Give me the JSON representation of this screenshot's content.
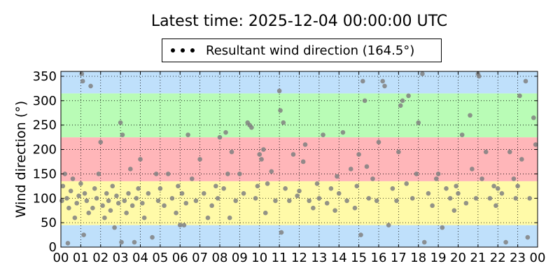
{
  "title": "Latest time: 2025-12-04 00:00:00 UTC",
  "legend": {
    "label": "Resultant wind direction (164.5°)"
  },
  "chart_data": {
    "type": "scatter",
    "title": "Latest time: 2025-12-04 00:00:00 UTC",
    "xlabel": "",
    "ylabel": "Wind direction (°)",
    "xlim": [
      0,
      24
    ],
    "ylim": [
      0,
      360
    ],
    "x_tick_labels": [
      "00",
      "01",
      "02",
      "03",
      "04",
      "05",
      "06",
      "07",
      "08",
      "09",
      "10",
      "11",
      "12",
      "13",
      "14",
      "15",
      "16",
      "17",
      "18",
      "19",
      "20",
      "21",
      "22",
      "23",
      "00"
    ],
    "y_ticks": [
      0,
      50,
      100,
      150,
      200,
      250,
      300,
      350
    ],
    "grid": true,
    "legend_position": "top-center",
    "point_color": "#808080",
    "bands": [
      {
        "from": 0,
        "to": 45,
        "color": "#bfe0fb"
      },
      {
        "from": 45,
        "to": 135,
        "color": "#fffaa8"
      },
      {
        "from": 135,
        "to": 225,
        "color": "#ffb6b9"
      },
      {
        "from": 225,
        "to": 315,
        "color": "#b9fcb6"
      },
      {
        "from": 315,
        "to": 360,
        "color": "#bfe0fb"
      }
    ],
    "series": [
      {
        "name": "Resultant wind direction (164.5°)",
        "points": [
          [
            0.05,
            95
          ],
          [
            0.1,
            125
          ],
          [
            0.2,
            150
          ],
          [
            0.3,
            100
          ],
          [
            0.35,
            8
          ],
          [
            0.4,
            80
          ],
          [
            0.5,
            115
          ],
          [
            0.6,
            140
          ],
          [
            0.7,
            60
          ],
          [
            0.8,
            90
          ],
          [
            0.9,
            105
          ],
          [
            1.0,
            130
          ],
          [
            1.05,
            355
          ],
          [
            1.1,
            340
          ],
          [
            1.15,
            25
          ],
          [
            1.2,
            110
          ],
          [
            1.3,
            95
          ],
          [
            1.4,
            70
          ],
          [
            1.5,
            330
          ],
          [
            1.6,
            80
          ],
          [
            1.7,
            120
          ],
          [
            1.8,
            100
          ],
          [
            1.9,
            150
          ],
          [
            2.0,
            215
          ],
          [
            2.1,
            85
          ],
          [
            2.2,
            60
          ],
          [
            2.3,
            110
          ],
          [
            2.4,
            95
          ],
          [
            2.5,
            75
          ],
          [
            2.6,
            125
          ],
          [
            2.7,
            40
          ],
          [
            2.8,
            105
          ],
          [
            2.9,
            90
          ],
          [
            3.0,
            255
          ],
          [
            3.05,
            10
          ],
          [
            3.1,
            230
          ],
          [
            3.2,
            95
          ],
          [
            3.3,
            70
          ],
          [
            3.4,
            110
          ],
          [
            3.5,
            160
          ],
          [
            3.6,
            85
          ],
          [
            3.7,
            10
          ],
          [
            3.8,
            100
          ],
          [
            3.9,
            120
          ],
          [
            4.0,
            180
          ],
          [
            4.1,
            90
          ],
          [
            4.2,
            60
          ],
          [
            4.4,
            110
          ],
          [
            4.6,
            20
          ],
          [
            4.8,
            150
          ],
          [
            4.9,
            95
          ],
          [
            5.0,
            120
          ],
          [
            5.2,
            85
          ],
          [
            5.4,
            150
          ],
          [
            5.6,
            100
          ],
          [
            5.8,
            70
          ],
          [
            5.9,
            125
          ],
          [
            6.0,
            45
          ],
          [
            6.1,
            110
          ],
          [
            6.2,
            45
          ],
          [
            6.3,
            90
          ],
          [
            6.4,
            230
          ],
          [
            6.6,
            140
          ],
          [
            6.8,
            95
          ],
          [
            7.0,
            180
          ],
          [
            7.2,
            110
          ],
          [
            7.4,
            60
          ],
          [
            7.6,
            85
          ],
          [
            7.8,
            125
          ],
          [
            7.9,
            100
          ],
          [
            8.0,
            225
          ],
          [
            8.2,
            120
          ],
          [
            8.3,
            235
          ],
          [
            8.4,
            150
          ],
          [
            8.5,
            60
          ],
          [
            8.6,
            195
          ],
          [
            8.8,
            95
          ],
          [
            9.0,
            150
          ],
          [
            9.2,
            110
          ],
          [
            9.4,
            255
          ],
          [
            9.5,
            250
          ],
          [
            9.6,
            245
          ],
          [
            9.8,
            100
          ],
          [
            9.9,
            125
          ],
          [
            10.0,
            190
          ],
          [
            10.1,
            180
          ],
          [
            10.2,
            200
          ],
          [
            10.3,
            70
          ],
          [
            10.4,
            130
          ],
          [
            10.6,
            155
          ],
          [
            10.8,
            95
          ],
          [
            11.0,
            320
          ],
          [
            11.05,
            280
          ],
          [
            11.1,
            30
          ],
          [
            11.2,
            255
          ],
          [
            11.3,
            120
          ],
          [
            11.5,
            95
          ],
          [
            11.7,
            190
          ],
          [
            11.9,
            105
          ],
          [
            12.0,
            115
          ],
          [
            12.2,
            175
          ],
          [
            12.3,
            210
          ],
          [
            12.5,
            95
          ],
          [
            12.7,
            80
          ],
          [
            12.9,
            130
          ],
          [
            13.0,
            100
          ],
          [
            13.2,
            230
          ],
          [
            13.4,
            90
          ],
          [
            13.6,
            120
          ],
          [
            13.8,
            75
          ],
          [
            13.9,
            145
          ],
          [
            14.0,
            110
          ],
          [
            14.2,
            235
          ],
          [
            14.4,
            95
          ],
          [
            14.6,
            160
          ],
          [
            14.8,
            80
          ],
          [
            14.9,
            125
          ],
          [
            15.0,
            190
          ],
          [
            15.1,
            25
          ],
          [
            15.2,
            340
          ],
          [
            15.3,
            300
          ],
          [
            15.4,
            165
          ],
          [
            15.5,
            100
          ],
          [
            15.7,
            140
          ],
          [
            15.9,
            95
          ],
          [
            16.0,
            215
          ],
          [
            16.2,
            340
          ],
          [
            16.3,
            330
          ],
          [
            16.5,
            45
          ],
          [
            16.7,
            120
          ],
          [
            16.9,
            95
          ],
          [
            17.0,
            195
          ],
          [
            17.1,
            290
          ],
          [
            17.2,
            300
          ],
          [
            17.4,
            130
          ],
          [
            17.5,
            310
          ],
          [
            17.7,
            100
          ],
          [
            17.9,
            150
          ],
          [
            18.0,
            255
          ],
          [
            18.2,
            355
          ],
          [
            18.3,
            10
          ],
          [
            18.5,
            110
          ],
          [
            18.7,
            85
          ],
          [
            18.9,
            140
          ],
          [
            19.0,
            150
          ],
          [
            19.2,
            40
          ],
          [
            19.4,
            120
          ],
          [
            19.6,
            100
          ],
          [
            19.8,
            75
          ],
          [
            19.9,
            125
          ],
          [
            20.0,
            110
          ],
          [
            20.2,
            230
          ],
          [
            20.4,
            90
          ],
          [
            20.6,
            270
          ],
          [
            20.7,
            160
          ],
          [
            20.9,
            100
          ],
          [
            21.0,
            355
          ],
          [
            21.05,
            350
          ],
          [
            21.2,
            140
          ],
          [
            21.4,
            195
          ],
          [
            21.6,
            100
          ],
          [
            21.8,
            125
          ],
          [
            21.9,
            85
          ],
          [
            22.0,
            120
          ],
          [
            22.2,
            110
          ],
          [
            22.4,
            10
          ],
          [
            22.6,
            195
          ],
          [
            22.8,
            140
          ],
          [
            22.9,
            100
          ],
          [
            23.0,
            125
          ],
          [
            23.1,
            310
          ],
          [
            23.2,
            180
          ],
          [
            23.4,
            340
          ],
          [
            23.5,
            20
          ],
          [
            23.6,
            100
          ],
          [
            23.8,
            265
          ],
          [
            23.9,
            210
          ]
        ]
      }
    ]
  }
}
